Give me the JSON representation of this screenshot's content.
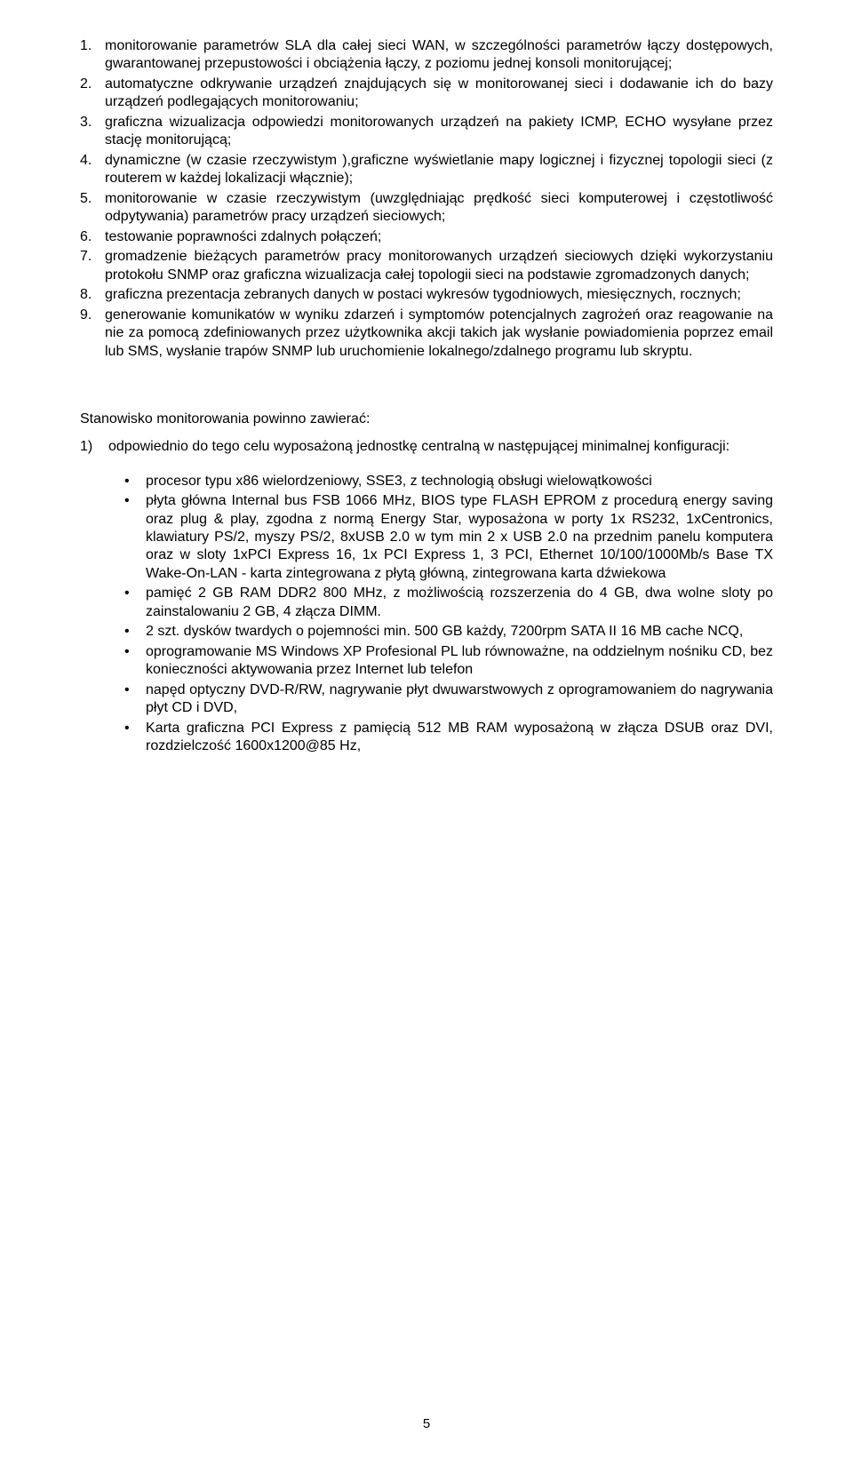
{
  "colors": {
    "background": "#ffffff",
    "text": "#000000"
  },
  "typography": {
    "font_family": "Verdana, Tahoma, Arial, sans-serif",
    "body_fontsize_pt": 12,
    "line_height": 1.28
  },
  "ordered_list": [
    {
      "num": "1.",
      "text": "monitorowanie parametrów SLA dla całej sieci WAN, w szczególności parametrów łączy dostępowych, gwarantowanej przepustowości i obciążenia łączy, z poziomu jednej konsoli monitorującej;"
    },
    {
      "num": "2.",
      "text": "automatyczne odkrywanie urządzeń znajdujących się w monitorowanej sieci i dodawanie ich do bazy urządzeń podlegających monitorowaniu;"
    },
    {
      "num": "3.",
      "text": "graficzna wizualizacja odpowiedzi monitorowanych urządzeń na pakiety ICMP, ECHO wysyłane przez stację monitorującą;"
    },
    {
      "num": "4.",
      "text": "dynamiczne (w czasie rzeczywistym ),graficzne wyświetlanie mapy logicznej i fizycznej topologii sieci (z routerem w każdej lokalizacji włącznie);"
    },
    {
      "num": "5.",
      "text": "monitorowanie w czasie rzeczywistym (uwzględniając prędkość sieci komputerowej i częstotliwość odpytywania) parametrów pracy urządzeń sieciowych;"
    },
    {
      "num": "6.",
      "text": "testowanie poprawności zdalnych połączeń;"
    },
    {
      "num": "7.",
      "text": "gromadzenie bieżących parametrów pracy monitorowanych urządzeń sieciowych dzięki wykorzystaniu protokołu SNMP oraz graficzna wizualizacja całej topologii sieci na podstawie zgromadzonych danych;"
    },
    {
      "num": "8.",
      "text": "graficzna prezentacja zebranych danych w postaci wykresów tygodniowych, miesięcznych, rocznych;"
    },
    {
      "num": "9.",
      "text": "generowanie komunikatów w wyniku zdarzeń i symptomów potencjalnych zagrożeń oraz reagowanie na  nie za pomocą zdefiniowanych przez użytkownika akcji takich jak wysłanie powiadomienia poprzez email lub SMS, wysłanie trapów SNMP lub uruchomienie lokalnego/zdalnego programu lub skryptu."
    }
  ],
  "section": {
    "intro": "Stanowisko monitorowania powinno zawierać:",
    "sub_num": "1)",
    "sub_text": "odpowiednio do tego celu wyposażoną jednostkę centralną w następującej minimalnej konfiguracji:"
  },
  "bullets": [
    "procesor typu x86 wielordzeniowy, SSE3, z  technologią obsługi wielowątkowości",
    "płyta główna Internal bus FSB 1066 MHz, BIOS type FLASH EPROM z procedurą  energy saving oraz  plug & play, zgodna z normą Energy Star, wyposażona w porty 1x RS232, 1xCentronics, klawiatury PS/2, myszy PS/2, 8xUSB 2.0 w tym min 2 x USB 2.0 na przednim panelu komputera oraz w sloty 1xPCI Express 16,  1x PCI Express 1,   3 PCI, Ethernet 10/100/1000Mb/s Base TX Wake-On-LAN - karta zintegrowana z płytą główną, zintegrowana karta dźwiekowa",
    "pamięć 2 GB RAM DDR2 800 MHz, z możliwością rozszerzenia do 4 GB, dwa wolne sloty po zainstalowaniu 2 GB, 4 złącza DIMM.",
    "2 szt. dysków twardych o pojemności  min. 500 GB każdy, 7200rpm  SATA II 16 MB cache  NCQ,",
    "oprogramowanie MS Windows XP Profesional PL lub równoważne, na oddzielnym nośniku CD, bez konieczności aktywowania przez Internet lub telefon",
    "napęd optyczny DVD-R/RW, nagrywanie płyt dwuwarstwowych z oprogramowaniem   do nagrywania płyt CD i DVD,",
    "Karta graficzna PCI Express z pamięcią 512 MB RAM wyposażoną w złącza DSUB oraz DVI, rozdzielczość 1600x1200@85 Hz,"
  ],
  "page_number": "5"
}
